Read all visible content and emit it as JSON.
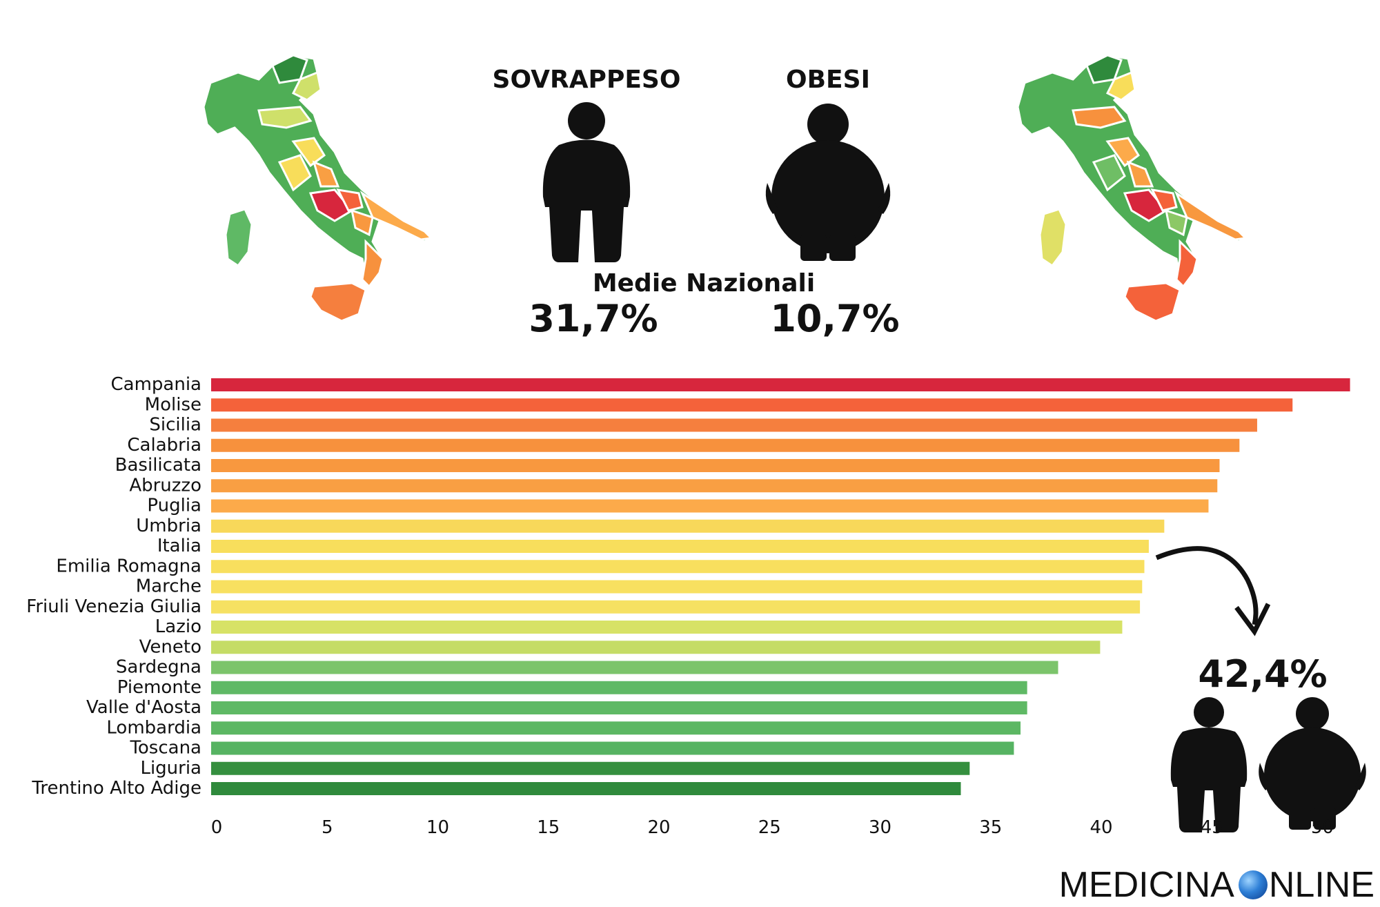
{
  "header": {
    "overweight_label": "SOVRAPPESO",
    "obese_label": "OBESI",
    "averages_title": "Medie Nazionali",
    "overweight_pct": "31,7%",
    "obese_pct": "10,7%",
    "combined_pct": "42,4%"
  },
  "icons": {
    "overweight": "overweight-person-icon",
    "obese": "obese-person-icon",
    "arrow": "curved-arrow-icon",
    "map": "italy-map"
  },
  "brand": {
    "name_left": "MEDICINA",
    "name_right": "NLINE"
  },
  "colors": {
    "red": "#d7263d",
    "orange_red": "#f4623a",
    "orange": "#f7913d",
    "light_orange": "#fcaa4a",
    "yellow": "#f8dd5a",
    "yellow_green": "#cfe06a",
    "green": "#6fbe65",
    "dark_green": "#2f8a3c"
  },
  "chart_data": {
    "type": "bar",
    "orientation": "horizontal",
    "categories": [
      "Campania",
      "Molise",
      "Sicilia",
      "Calabria",
      "Basilicata",
      "Abruzzo",
      "Puglia",
      "Umbria",
      "Italia",
      "Emilia Romagna",
      "Marche",
      "Friuli Venezia Giulia",
      "Lazio",
      "Veneto",
      "Sardegna",
      "Piemonte",
      "Valle d'Aosta",
      "Lombardia",
      "Toscana",
      "Liguria",
      "Trentino Alto Adige"
    ],
    "values": [
      51.5,
      48.9,
      47.3,
      46.5,
      45.6,
      45.5,
      45.1,
      43.1,
      42.4,
      42.2,
      42.1,
      42.0,
      41.2,
      40.2,
      38.3,
      36.9,
      36.9,
      36.6,
      36.3,
      34.3,
      33.9
    ],
    "bar_colors": [
      "#d7263d",
      "#f4623a",
      "#f57f3e",
      "#f7913d",
      "#f8983f",
      "#f99f43",
      "#fcaa4a",
      "#f8d85a",
      "#f8de5c",
      "#f8df5e",
      "#f8e060",
      "#f6e162",
      "#d7e266",
      "#c5dc66",
      "#7cc46b",
      "#5fb965",
      "#5fb965",
      "#5cb763",
      "#56b362",
      "#358f3f",
      "#2f8a3c"
    ],
    "xticks": [
      0,
      5,
      10,
      15,
      20,
      25,
      30,
      35,
      40,
      45,
      50
    ],
    "xlim": [
      0,
      52
    ],
    "grid": false,
    "legend": "none"
  }
}
